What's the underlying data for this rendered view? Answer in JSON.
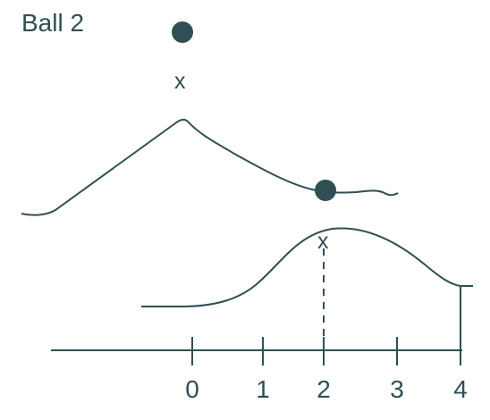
{
  "title": "Ball 2",
  "colors": {
    "ink": "#2f4f54",
    "background": "#ffffff"
  },
  "top_marker": {
    "label": "x"
  },
  "lower_marker": {
    "label": "x"
  },
  "axis": {
    "ticks": [
      "0",
      "1",
      "2",
      "3",
      "4"
    ]
  }
}
